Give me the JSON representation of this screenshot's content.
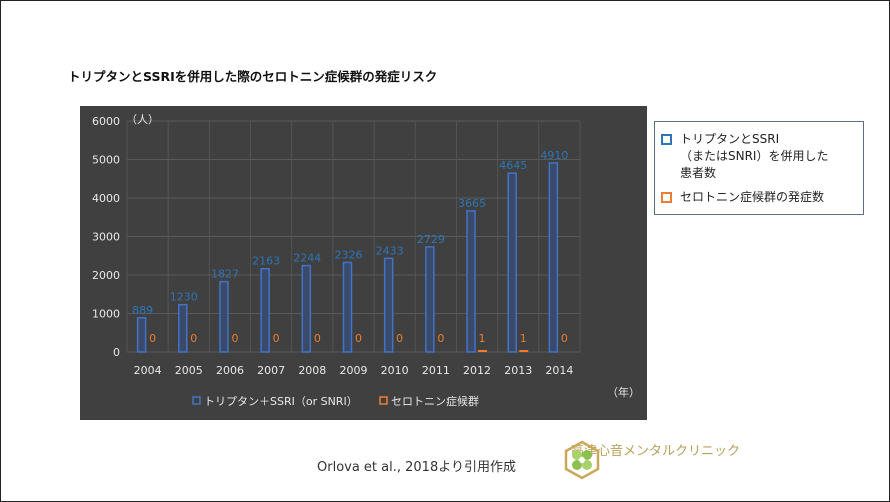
{
  "title": "トリプタンとSSRIを併用した際のセロトニン症候群の発症リスク",
  "chart_data": {
    "type": "bar",
    "categories": [
      "2004",
      "2005",
      "2006",
      "2007",
      "2008",
      "2009",
      "2010",
      "2011",
      "2012",
      "2013",
      "2014"
    ],
    "series": [
      {
        "name": "トリプタン＋SSRI（or SNRI）",
        "color": "#4472c4",
        "label_color": "#2e75b6",
        "values": [
          889,
          1230,
          1827,
          2163,
          2244,
          2326,
          2433,
          2729,
          3665,
          4645,
          4910
        ]
      },
      {
        "name": "セロトニン症候群",
        "color": "#ed7d31",
        "label_color": "#ed7d31",
        "values": [
          0,
          0,
          0,
          0,
          0,
          0,
          0,
          0,
          1,
          1,
          0
        ]
      }
    ],
    "ylim": [
      0,
      6000
    ],
    "yticks": [
      "0",
      "1000",
      "2000",
      "3000",
      "4000",
      "5000",
      "6000"
    ],
    "ylabel": "（人）",
    "xlabel": "（年）",
    "grid": true,
    "legend": "bottom"
  },
  "side_legend": {
    "items": [
      {
        "label": "トリプタンとSSRI（またはSNRI）を併用した患者数",
        "lines": [
          "トリプタンとSSRI",
          "（またはSNRI）を併用した",
          "患者数"
        ],
        "color": "#2e75b6"
      },
      {
        "label": "セロトニン症候群の発症数",
        "lines": [
          "セロトニン症候群の発症数"
        ],
        "color": "#ed7d31"
      }
    ]
  },
  "citation": "Orlova et al., 2018より引用作成",
  "logo": {
    "text": "高津心音メンタルクリニック",
    "color": "#b8a15a"
  }
}
